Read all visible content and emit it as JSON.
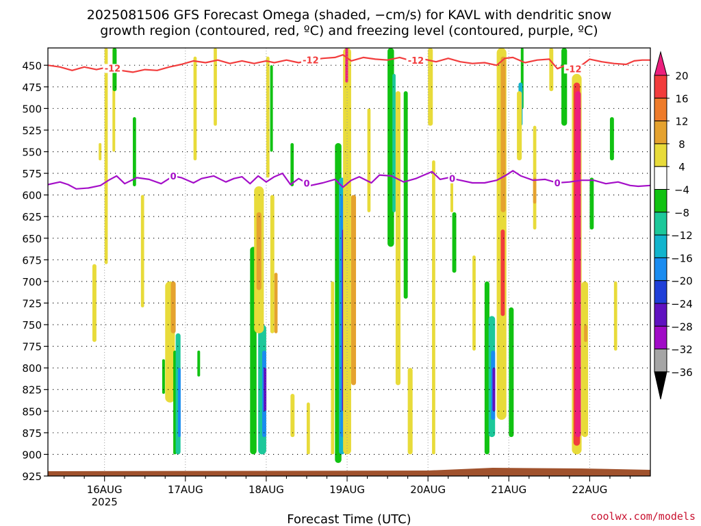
{
  "title_line1": "2025081506 GFS Forecast Omega (shaded, −cm/s) for KAVL with dendritic snow",
  "title_line2": "growth region (contoured, red, ºC) and freezing level (contoured, purple, ºC)",
  "xlabel": "Forecast Time (UTC)",
  "credit": "coolwx.com/models",
  "chart_data": {
    "type": "heatmap",
    "y_scale": "pressure (inverted)",
    "y_ticks": [
      450,
      475,
      500,
      525,
      550,
      575,
      600,
      625,
      650,
      675,
      700,
      725,
      750,
      775,
      800,
      825,
      850,
      875,
      900,
      925
    ],
    "ylim": [
      925,
      430
    ],
    "x_range_days": [
      15.3,
      22.75
    ],
    "x_ticks": [
      {
        "day": 16,
        "label": "16AUG",
        "sublabel": "2025"
      },
      {
        "day": 17,
        "label": "17AUG",
        "sublabel": ""
      },
      {
        "day": 18,
        "label": "18AUG",
        "sublabel": ""
      },
      {
        "day": 19,
        "label": "19AUG",
        "sublabel": ""
      },
      {
        "day": 20,
        "label": "20AUG",
        "sublabel": ""
      },
      {
        "day": 21,
        "label": "21AUG",
        "sublabel": ""
      },
      {
        "day": 22,
        "label": "22AUG",
        "sublabel": ""
      }
    ],
    "grid": true,
    "colorbar": {
      "labels": [
        "20",
        "16",
        "12",
        "8",
        "4",
        "−4",
        "−8",
        "−12",
        "−16",
        "−20",
        "−24",
        "−28",
        "−32",
        "−36"
      ],
      "bands": [
        "#ec1f7d",
        "#f23c3c",
        "#ee7b2a",
        "#e5a22f",
        "#e8db3a",
        "#ffffff",
        "#11c212",
        "#1cc89a",
        "#12b4cd",
        "#1a8cf0",
        "#1f3fd8",
        "#6012c0",
        "#a00bc6",
        "#a5a5a5"
      ],
      "top_arrow": "#ec1f7d",
      "bottom_arrow": "#000000"
    },
    "contours": [
      {
        "label": "-12",
        "color": "#f23c3c",
        "points": [
          [
            15.3,
            450
          ],
          [
            15.45,
            452
          ],
          [
            15.6,
            456
          ],
          [
            15.75,
            452
          ],
          [
            15.9,
            455
          ],
          [
            16.05,
            452
          ],
          [
            16.2,
            456
          ],
          [
            16.35,
            458
          ],
          [
            16.5,
            455
          ],
          [
            16.65,
            456
          ],
          [
            16.8,
            452
          ],
          [
            16.95,
            449
          ],
          [
            17.1,
            445
          ],
          [
            17.25,
            447
          ],
          [
            17.4,
            444
          ],
          [
            17.55,
            448
          ],
          [
            17.7,
            445
          ],
          [
            17.85,
            448
          ],
          [
            18.0,
            445
          ],
          [
            18.1,
            447
          ],
          [
            18.25,
            444
          ],
          [
            18.4,
            447
          ],
          [
            18.55,
            444
          ],
          [
            18.7,
            442
          ],
          [
            18.85,
            441
          ],
          [
            18.95,
            438
          ],
          [
            19.05,
            445
          ],
          [
            19.2,
            441
          ],
          [
            19.35,
            443
          ],
          [
            19.5,
            444
          ],
          [
            19.65,
            441
          ],
          [
            19.8,
            445
          ],
          [
            19.95,
            443
          ],
          [
            20.1,
            446
          ],
          [
            20.25,
            442
          ],
          [
            20.4,
            446
          ],
          [
            20.55,
            448
          ],
          [
            20.7,
            447
          ],
          [
            20.85,
            450
          ],
          [
            20.95,
            442
          ],
          [
            21.05,
            441
          ],
          [
            21.2,
            447
          ],
          [
            21.35,
            444
          ],
          [
            21.5,
            443
          ],
          [
            21.6,
            454
          ],
          [
            21.7,
            450
          ],
          [
            21.8,
            454
          ],
          [
            21.9,
            450
          ],
          [
            22.0,
            443
          ],
          [
            22.15,
            446
          ],
          [
            22.3,
            448
          ],
          [
            22.45,
            449
          ],
          [
            22.55,
            445
          ],
          [
            22.65,
            444
          ],
          [
            22.75,
            444
          ]
        ],
        "label_days": [
          16.1,
          18.55,
          19.85,
          21.8
        ]
      },
      {
        "label": "0",
        "color": "#a40ec8",
        "points": [
          [
            15.3,
            588
          ],
          [
            15.45,
            585
          ],
          [
            15.55,
            588
          ],
          [
            15.65,
            593
          ],
          [
            15.8,
            592
          ],
          [
            15.95,
            589
          ],
          [
            16.05,
            583
          ],
          [
            16.15,
            578
          ],
          [
            16.25,
            587
          ],
          [
            16.4,
            580
          ],
          [
            16.55,
            582
          ],
          [
            16.7,
            587
          ],
          [
            16.85,
            578
          ],
          [
            16.95,
            580
          ],
          [
            17.1,
            586
          ],
          [
            17.2,
            581
          ],
          [
            17.35,
            578
          ],
          [
            17.5,
            585
          ],
          [
            17.6,
            581
          ],
          [
            17.7,
            579
          ],
          [
            17.8,
            587
          ],
          [
            17.9,
            578
          ],
          [
            18.0,
            585
          ],
          [
            18.1,
            579
          ],
          [
            18.2,
            575
          ],
          [
            18.3,
            588
          ],
          [
            18.4,
            581
          ],
          [
            18.55,
            589
          ],
          [
            18.7,
            586
          ],
          [
            18.85,
            582
          ],
          [
            18.95,
            591
          ],
          [
            19.05,
            583
          ],
          [
            19.15,
            579
          ],
          [
            19.3,
            586
          ],
          [
            19.4,
            577
          ],
          [
            19.55,
            578
          ],
          [
            19.7,
            585
          ],
          [
            19.85,
            581
          ],
          [
            19.95,
            577
          ],
          [
            20.05,
            573
          ],
          [
            20.15,
            582
          ],
          [
            20.25,
            580
          ],
          [
            20.4,
            583
          ],
          [
            20.55,
            586
          ],
          [
            20.7,
            586
          ],
          [
            20.85,
            583
          ],
          [
            20.95,
            578
          ],
          [
            21.05,
            572
          ],
          [
            21.15,
            578
          ],
          [
            21.3,
            583
          ],
          [
            21.45,
            582
          ],
          [
            21.6,
            586
          ],
          [
            21.75,
            585
          ],
          [
            21.9,
            583
          ],
          [
            22.05,
            583
          ],
          [
            22.2,
            587
          ],
          [
            22.35,
            585
          ],
          [
            22.5,
            589
          ],
          [
            22.6,
            590
          ],
          [
            22.75,
            589
          ]
        ],
        "label_days": [
          16.85,
          18.5,
          20.3,
          21.6
        ]
      }
    ],
    "shaded_regions": [
      {
        "x": 16.0,
        "w": 0.04,
        "p1": 430,
        "p2": 680,
        "value": 5
      },
      {
        "x": 16.1,
        "w": 0.03,
        "p1": 430,
        "p2": 550,
        "value": 5
      },
      {
        "x": 16.1,
        "w": 0.05,
        "p1": 430,
        "p2": 480,
        "value": -6
      },
      {
        "x": 15.85,
        "w": 0.05,
        "p1": 680,
        "p2": 770,
        "value": 5
      },
      {
        "x": 15.93,
        "w": 0.03,
        "p1": 540,
        "p2": 560,
        "value": 5
      },
      {
        "x": 16.35,
        "w": 0.04,
        "p1": 510,
        "p2": 590,
        "value": -6
      },
      {
        "x": 16.45,
        "w": 0.04,
        "p1": 600,
        "p2": 730,
        "value": 5
      },
      {
        "x": 16.75,
        "w": 0.12,
        "p1": 700,
        "p2": 840,
        "value": 6
      },
      {
        "x": 16.82,
        "w": 0.06,
        "p1": 700,
        "p2": 760,
        "value": 10
      },
      {
        "x": 16.85,
        "w": 0.04,
        "p1": 780,
        "p2": 900,
        "value": -6
      },
      {
        "x": 16.88,
        "w": 0.06,
        "p1": 760,
        "p2": 900,
        "value": -10
      },
      {
        "x": 16.91,
        "w": 0.03,
        "p1": 800,
        "p2": 880,
        "value": -16
      },
      {
        "x": 16.72,
        "w": 0.02,
        "p1": 790,
        "p2": 830,
        "value": -6
      },
      {
        "x": 17.1,
        "w": 0.04,
        "p1": 440,
        "p2": 560,
        "value": 5
      },
      {
        "x": 17.15,
        "w": 0.03,
        "p1": 780,
        "p2": 810,
        "value": -6
      },
      {
        "x": 17.35,
        "w": 0.04,
        "p1": 430,
        "p2": 520,
        "value": 5
      },
      {
        "x": 17.8,
        "w": 0.08,
        "p1": 660,
        "p2": 900,
        "value": -6
      },
      {
        "x": 17.9,
        "w": 0.1,
        "p1": 750,
        "p2": 900,
        "value": -11
      },
      {
        "x": 17.95,
        "w": 0.05,
        "p1": 780,
        "p2": 880,
        "value": -18
      },
      {
        "x": 17.97,
        "w": 0.03,
        "p1": 800,
        "p2": 850,
        "value": -26
      },
      {
        "x": 17.85,
        "w": 0.12,
        "p1": 590,
        "p2": 760,
        "value": 5
      },
      {
        "x": 17.88,
        "w": 0.06,
        "p1": 620,
        "p2": 710,
        "value": 10
      },
      {
        "x": 18.05,
        "w": 0.05,
        "p1": 600,
        "p2": 760,
        "value": 5
      },
      {
        "x": 18.1,
        "w": 0.04,
        "p1": 690,
        "p2": 760,
        "value": 10
      },
      {
        "x": 18.05,
        "w": 0.03,
        "p1": 450,
        "p2": 550,
        "value": -6
      },
      {
        "x": 18.0,
        "w": 0.04,
        "p1": 440,
        "p2": 580,
        "value": 5
      },
      {
        "x": 18.3,
        "w": 0.04,
        "p1": 540,
        "p2": 590,
        "value": -6
      },
      {
        "x": 18.3,
        "w": 0.05,
        "p1": 830,
        "p2": 880,
        "value": 5
      },
      {
        "x": 18.5,
        "w": 0.04,
        "p1": 840,
        "p2": 900,
        "value": 5
      },
      {
        "x": 18.85,
        "w": 0.08,
        "p1": 540,
        "p2": 910,
        "value": -6
      },
      {
        "x": 18.9,
        "w": 0.07,
        "p1": 580,
        "p2": 900,
        "value": -12
      },
      {
        "x": 18.92,
        "w": 0.05,
        "p1": 600,
        "p2": 880,
        "value": -18
      },
      {
        "x": 18.94,
        "w": 0.03,
        "p1": 640,
        "p2": 850,
        "value": -26
      },
      {
        "x": 18.8,
        "w": 0.04,
        "p1": 700,
        "p2": 900,
        "value": 5
      },
      {
        "x": 18.95,
        "w": 0.1,
        "p1": 430,
        "p2": 900,
        "value": 5
      },
      {
        "x": 19.05,
        "w": 0.06,
        "p1": 600,
        "p2": 820,
        "value": 9
      },
      {
        "x": 18.98,
        "w": 0.03,
        "p1": 430,
        "p2": 470,
        "value": 18
      },
      {
        "x": 19.25,
        "w": 0.04,
        "p1": 500,
        "p2": 620,
        "value": 5
      },
      {
        "x": 19.5,
        "w": 0.08,
        "p1": 430,
        "p2": 660,
        "value": -6
      },
      {
        "x": 19.56,
        "w": 0.04,
        "p1": 460,
        "p2": 620,
        "value": -10
      },
      {
        "x": 19.6,
        "w": 0.06,
        "p1": 480,
        "p2": 820,
        "value": 5
      },
      {
        "x": 19.7,
        "w": 0.05,
        "p1": 480,
        "p2": 720,
        "value": -6
      },
      {
        "x": 19.75,
        "w": 0.06,
        "p1": 800,
        "p2": 900,
        "value": 5
      },
      {
        "x": 20.0,
        "w": 0.06,
        "p1": 430,
        "p2": 520,
        "value": 5
      },
      {
        "x": 20.05,
        "w": 0.04,
        "p1": 560,
        "p2": 900,
        "value": 5
      },
      {
        "x": 20.3,
        "w": 0.05,
        "p1": 620,
        "p2": 690,
        "value": -6
      },
      {
        "x": 20.28,
        "w": 0.03,
        "p1": 580,
        "p2": 620,
        "value": 5
      },
      {
        "x": 20.55,
        "w": 0.04,
        "p1": 670,
        "p2": 780,
        "value": 5
      },
      {
        "x": 20.7,
        "w": 0.06,
        "p1": 700,
        "p2": 900,
        "value": -6
      },
      {
        "x": 20.75,
        "w": 0.08,
        "p1": 740,
        "p2": 880,
        "value": -11
      },
      {
        "x": 20.78,
        "w": 0.05,
        "p1": 780,
        "p2": 860,
        "value": -18
      },
      {
        "x": 20.8,
        "w": 0.03,
        "p1": 800,
        "p2": 850,
        "value": -26
      },
      {
        "x": 20.85,
        "w": 0.12,
        "p1": 430,
        "p2": 860,
        "value": 5
      },
      {
        "x": 20.9,
        "w": 0.06,
        "p1": 440,
        "p2": 620,
        "value": 9
      },
      {
        "x": 20.9,
        "w": 0.05,
        "p1": 640,
        "p2": 740,
        "value": 12
      },
      {
        "x": 21.0,
        "w": 0.06,
        "p1": 730,
        "p2": 880,
        "value": -6
      },
      {
        "x": 21.15,
        "w": 0.03,
        "p1": 430,
        "p2": 500,
        "value": -6
      },
      {
        "x": 21.12,
        "w": 0.05,
        "p1": 470,
        "p2": 520,
        "value": -12
      },
      {
        "x": 21.1,
        "w": 0.06,
        "p1": 480,
        "p2": 560,
        "value": 5
      },
      {
        "x": 21.3,
        "w": 0.04,
        "p1": 520,
        "p2": 640,
        "value": 5
      },
      {
        "x": 21.3,
        "w": 0.04,
        "p1": 580,
        "p2": 610,
        "value": 10
      },
      {
        "x": 21.5,
        "w": 0.05,
        "p1": 430,
        "p2": 480,
        "value": 5
      },
      {
        "x": 21.65,
        "w": 0.07,
        "p1": 430,
        "p2": 520,
        "value": -6
      },
      {
        "x": 21.78,
        "w": 0.12,
        "p1": 460,
        "p2": 900,
        "value": 5
      },
      {
        "x": 21.8,
        "w": 0.08,
        "p1": 470,
        "p2": 890,
        "value": 12
      },
      {
        "x": 21.82,
        "w": 0.07,
        "p1": 480,
        "p2": 880,
        "value": 19
      },
      {
        "x": 21.9,
        "w": 0.08,
        "p1": 700,
        "p2": 880,
        "value": 5
      },
      {
        "x": 21.93,
        "w": 0.04,
        "p1": 750,
        "p2": 770,
        "value": 10
      },
      {
        "x": 22.0,
        "w": 0.05,
        "p1": 580,
        "p2": 640,
        "value": -6
      },
      {
        "x": 22.25,
        "w": 0.05,
        "p1": 510,
        "p2": 560,
        "value": -6
      },
      {
        "x": 22.3,
        "w": 0.04,
        "p1": 700,
        "p2": 780,
        "value": 5
      }
    ]
  }
}
